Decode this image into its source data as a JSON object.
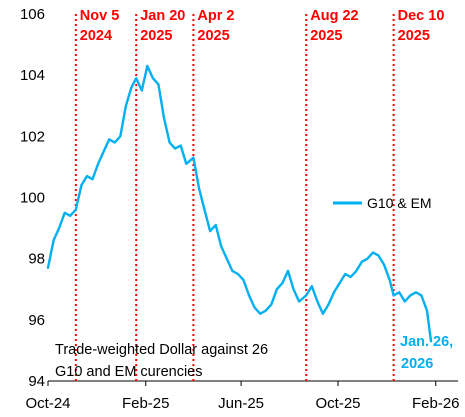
{
  "chart_data": {
    "type": "line",
    "title": "",
    "xlabel": "",
    "ylabel": "",
    "ylim": [
      94,
      106
    ],
    "yticks": [
      "94",
      "96",
      "98",
      "100",
      "102",
      "104",
      "106"
    ],
    "xticks": [
      {
        "label": "Oct-24",
        "date": "2024-10-01"
      },
      {
        "label": "Feb-25",
        "date": "2025-02-01"
      },
      {
        "label": "Jun-25",
        "date": "2025-06-01"
      },
      {
        "label": "Oct-25",
        "date": "2025-10-01"
      },
      {
        "label": "Feb-26",
        "date": "2026-02-01"
      }
    ],
    "xlim": [
      "2024-10-01",
      "2026-03-01"
    ],
    "series": [
      {
        "name": "G10 & EM",
        "color": "#00b0f0",
        "points": [
          [
            "2024-10-01",
            97.7
          ],
          [
            "2024-10-08",
            98.6
          ],
          [
            "2024-10-15",
            99.0
          ],
          [
            "2024-10-22",
            99.5
          ],
          [
            "2024-10-29",
            99.4
          ],
          [
            "2024-11-05",
            99.6
          ],
          [
            "2024-11-12",
            100.4
          ],
          [
            "2024-11-19",
            100.7
          ],
          [
            "2024-11-26",
            100.6
          ],
          [
            "2024-12-03",
            101.1
          ],
          [
            "2024-12-10",
            101.5
          ],
          [
            "2024-12-17",
            101.9
          ],
          [
            "2024-12-24",
            101.8
          ],
          [
            "2024-12-31",
            102.0
          ],
          [
            "2025-01-07",
            103.0
          ],
          [
            "2025-01-14",
            103.6
          ],
          [
            "2025-01-20",
            103.9
          ],
          [
            "2025-01-27",
            103.5
          ],
          [
            "2025-02-03",
            104.3
          ],
          [
            "2025-02-10",
            103.9
          ],
          [
            "2025-02-17",
            103.7
          ],
          [
            "2025-02-24",
            102.6
          ],
          [
            "2025-03-03",
            101.8
          ],
          [
            "2025-03-10",
            101.6
          ],
          [
            "2025-03-17",
            101.7
          ],
          [
            "2025-03-24",
            101.1
          ],
          [
            "2025-04-02",
            101.3
          ],
          [
            "2025-04-09",
            100.3
          ],
          [
            "2025-04-16",
            99.6
          ],
          [
            "2025-04-23",
            98.9
          ],
          [
            "2025-04-30",
            99.1
          ],
          [
            "2025-05-07",
            98.4
          ],
          [
            "2025-05-14",
            98.0
          ],
          [
            "2025-05-21",
            97.6
          ],
          [
            "2025-05-28",
            97.5
          ],
          [
            "2025-06-04",
            97.3
          ],
          [
            "2025-06-11",
            96.8
          ],
          [
            "2025-06-18",
            96.4
          ],
          [
            "2025-06-25",
            96.2
          ],
          [
            "2025-07-02",
            96.3
          ],
          [
            "2025-07-09",
            96.5
          ],
          [
            "2025-07-16",
            97.0
          ],
          [
            "2025-07-23",
            97.2
          ],
          [
            "2025-07-30",
            97.6
          ],
          [
            "2025-08-06",
            97.0
          ],
          [
            "2025-08-13",
            96.6
          ],
          [
            "2025-08-22",
            96.8
          ],
          [
            "2025-08-29",
            97.1
          ],
          [
            "2025-09-05",
            96.6
          ],
          [
            "2025-09-12",
            96.2
          ],
          [
            "2025-09-19",
            96.5
          ],
          [
            "2025-09-26",
            96.9
          ],
          [
            "2025-10-03",
            97.2
          ],
          [
            "2025-10-10",
            97.5
          ],
          [
            "2025-10-17",
            97.4
          ],
          [
            "2025-10-24",
            97.6
          ],
          [
            "2025-10-31",
            97.9
          ],
          [
            "2025-11-07",
            98.0
          ],
          [
            "2025-11-14",
            98.2
          ],
          [
            "2025-11-21",
            98.1
          ],
          [
            "2025-11-28",
            97.8
          ],
          [
            "2025-12-05",
            97.3
          ],
          [
            "2025-12-10",
            96.8
          ],
          [
            "2025-12-17",
            96.9
          ],
          [
            "2025-12-24",
            96.6
          ],
          [
            "2025-12-31",
            96.8
          ],
          [
            "2026-01-07",
            96.9
          ],
          [
            "2026-01-14",
            96.8
          ],
          [
            "2026-01-21",
            96.3
          ],
          [
            "2026-01-26",
            95.3
          ]
        ]
      }
    ],
    "events": [
      {
        "line1": "Nov 5",
        "line2": "2024",
        "date": "2024-11-05"
      },
      {
        "line1": "Jan 20",
        "line2": "2025",
        "date": "2025-01-20"
      },
      {
        "line1": "Apr 2",
        "line2": "2025",
        "date": "2025-04-02"
      },
      {
        "line1": "Aug 22",
        "line2": "2025",
        "date": "2025-08-22"
      },
      {
        "line1": "Dec 10",
        "line2": "2025",
        "date": "2025-12-10"
      }
    ],
    "event_color": "#ff0000",
    "legend": {
      "label": "G10 & EM",
      "placement": "right"
    },
    "annotation": {
      "line1": "Trade-weighted Dollar against 26",
      "line2": "G10 and EM curencies"
    },
    "end_label": {
      "line1": "Jan. 26,",
      "line2": "2026",
      "color": "#00b0f0"
    },
    "grid": false
  }
}
